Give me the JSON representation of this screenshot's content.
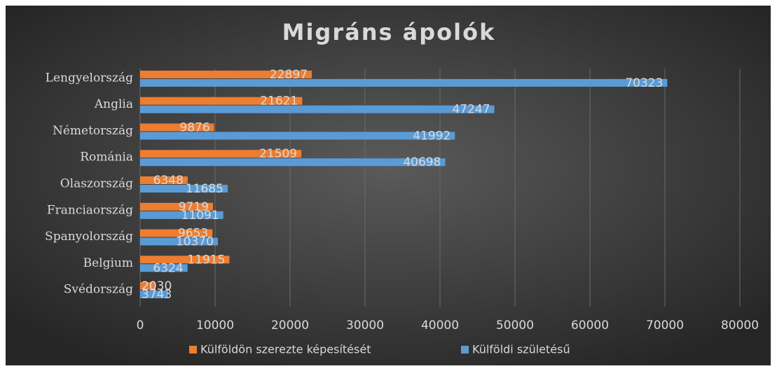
{
  "chart_data": {
    "type": "barh",
    "title": "Migráns ápolók",
    "categories": [
      "Lengyelország",
      "Anglia",
      "Németország",
      "Románia",
      "Olaszország",
      "Franciaország",
      "Spanyolország",
      "Belgium",
      "Svédország"
    ],
    "series": [
      {
        "name": "Külföldön szerezte képesítését",
        "color": "#ed7d31",
        "values": [
          22897,
          21621,
          9876,
          21509,
          6348,
          9719,
          9653,
          11915,
          2030
        ]
      },
      {
        "name": "Külföldi születésű",
        "color": "#5b9bd5",
        "values": [
          70323,
          47247,
          41992,
          40698,
          11685,
          11091,
          10370,
          6324,
          3743
        ]
      }
    ],
    "xlim": [
      0,
      80000
    ],
    "xticks": [
      0,
      10000,
      20000,
      30000,
      40000,
      50000,
      60000,
      70000,
      80000
    ],
    "grid": true,
    "legend": "bottom"
  }
}
